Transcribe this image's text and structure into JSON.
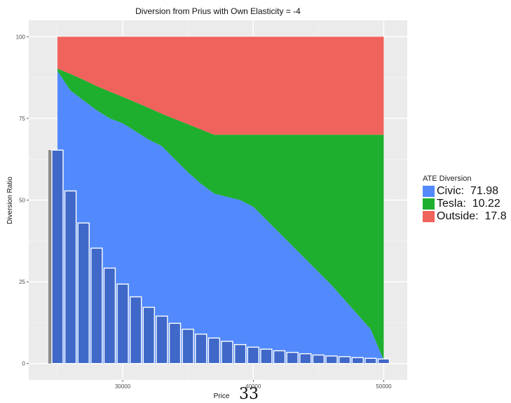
{
  "chart_data": {
    "type": "area",
    "title": "Diversion from Prius with Own Elasticity = -4",
    "xlabel": "Price",
    "ylabel": "Diversion Ratio",
    "xlim": [
      22800,
      51800
    ],
    "ylim": [
      -5,
      105
    ],
    "x_ticks": [
      30000,
      40000,
      50000
    ],
    "x_tick_labels": [
      "30000",
      "40000",
      "50000"
    ],
    "y_ticks": [
      0,
      25,
      50,
      75,
      100
    ],
    "y_tick_labels": [
      "0",
      "25",
      "50",
      "75",
      "100"
    ],
    "grid": true,
    "stacked": true,
    "x": [
      25000,
      26000,
      27000,
      28000,
      29000,
      30000,
      31000,
      32000,
      33000,
      34000,
      35000,
      36000,
      37000,
      38000,
      39000,
      40000,
      41000,
      42000,
      43000,
      44000,
      45000,
      46000,
      47000,
      48000,
      49000,
      50000
    ],
    "series": [
      {
        "name": "Civic",
        "color": "#528afd",
        "values": [
          89.5,
          83.5,
          80.5,
          77.5,
          75,
          73.5,
          71,
          68.5,
          66.5,
          62.5,
          58.5,
          55,
          52,
          51,
          50,
          48,
          44,
          40,
          36,
          32,
          28,
          24,
          19.5,
          15,
          10.5,
          1
        ]
      },
      {
        "name": "Tesla",
        "color": "#1eaf2e",
        "values": [
          0.7,
          5.1,
          6.3,
          7.4,
          8.2,
          8.1,
          8.9,
          9.7,
          9.9,
          12.3,
          14.7,
          16.6,
          18,
          19,
          20,
          22,
          26,
          30,
          34,
          38,
          42,
          46,
          50.5,
          55,
          59.5,
          69
        ]
      },
      {
        "name": "Outside",
        "color": "#f0625c",
        "values": [
          9.8,
          11.4,
          13.2,
          15.1,
          16.8,
          18.4,
          20.1,
          21.8,
          23.6,
          25.2,
          26.8,
          28.4,
          30,
          30,
          30,
          30,
          30,
          30,
          30,
          30,
          30,
          30,
          30,
          30,
          30,
          30
        ]
      }
    ],
    "bars": {
      "name": "Prius share",
      "color": "#3f68c9",
      "shadow_color": "#8c8c8c",
      "x": [
        25000,
        26000,
        27000,
        28000,
        29000,
        30000,
        31000,
        32000,
        33000,
        34000,
        35000,
        36000,
        37000,
        38000,
        39000,
        40000,
        41000,
        42000,
        43000,
        44000,
        45000,
        46000,
        47000,
        48000,
        49000,
        50000
      ],
      "values": [
        65.3,
        52.8,
        43,
        35.3,
        29.2,
        24.3,
        20.4,
        17.2,
        14.5,
        12.3,
        10.5,
        9,
        7.8,
        6.8,
        5.8,
        5,
        4.4,
        3.9,
        3.4,
        3,
        2.6,
        2.3,
        2.1,
        1.8,
        1.6,
        1.4
      ]
    },
    "legend": {
      "title": "ATE Diversion",
      "placement": "right",
      "entries": [
        {
          "label": "Civic:  71.98",
          "color": "#528afd"
        },
        {
          "label": "Tesla:  10.22",
          "color": "#1eaf2e"
        },
        {
          "label": "Outside:  17.8",
          "color": "#f0625c"
        }
      ]
    },
    "panel_background": "#ebebeb"
  },
  "page_number": "33"
}
